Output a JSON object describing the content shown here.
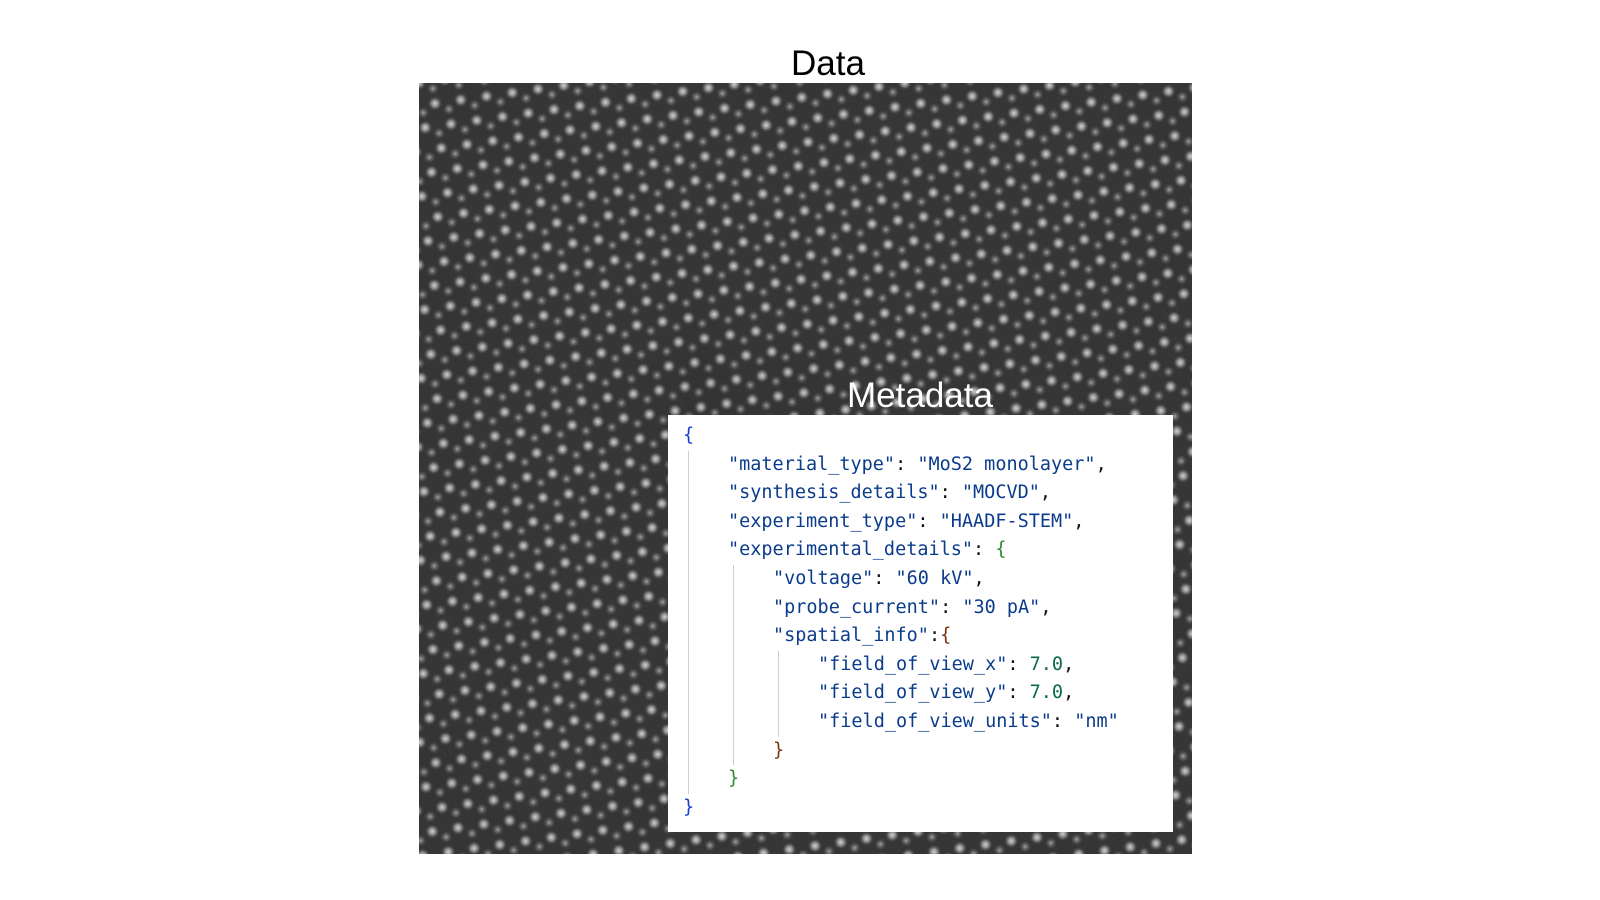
{
  "title": "Data",
  "metadata_title": "Metadata",
  "code": {
    "lines": [
      [
        {
          "text": "{",
          "color": "#1b3fd0"
        }
      ],
      [
        {
          "text": "\"material_type\"",
          "color": "#0b3c8c"
        },
        {
          "text": ": ",
          "color": "#111111"
        },
        {
          "text": "\"MoS2 monolayer\"",
          "color": "#0b3c8c"
        },
        {
          "text": ",",
          "color": "#111111"
        }
      ],
      [
        {
          "text": "\"synthesis_details\"",
          "color": "#0b3c8c"
        },
        {
          "text": ": ",
          "color": "#111111"
        },
        {
          "text": "\"MOCVD\"",
          "color": "#0b3c8c"
        },
        {
          "text": ",",
          "color": "#111111"
        }
      ],
      [
        {
          "text": "\"experiment_type\"",
          "color": "#0b3c8c"
        },
        {
          "text": ": ",
          "color": "#111111"
        },
        {
          "text": "\"HAADF-STEM\"",
          "color": "#0b3c8c"
        },
        {
          "text": ",",
          "color": "#111111"
        }
      ],
      [
        {
          "text": "\"experimental_details\"",
          "color": "#0b3c8c"
        },
        {
          "text": ": ",
          "color": "#111111"
        },
        {
          "text": "{",
          "color": "#2e8b2e"
        }
      ],
      [
        {
          "text": "\"voltage\"",
          "color": "#0b3c8c"
        },
        {
          "text": ": ",
          "color": "#111111"
        },
        {
          "text": "\"60 kV\"",
          "color": "#0b3c8c"
        },
        {
          "text": ",",
          "color": "#111111"
        }
      ],
      [
        {
          "text": "\"probe_current\"",
          "color": "#0b3c8c"
        },
        {
          "text": ": ",
          "color": "#111111"
        },
        {
          "text": "\"30 pA\"",
          "color": "#0b3c8c"
        },
        {
          "text": ",",
          "color": "#111111"
        }
      ],
      [
        {
          "text": "\"spatial_info\"",
          "color": "#0b3c8c"
        },
        {
          "text": ":",
          "color": "#111111"
        },
        {
          "text": "{",
          "color": "#7a3414"
        }
      ],
      [
        {
          "text": "\"field_of_view_x\"",
          "color": "#0b3c8c"
        },
        {
          "text": ": ",
          "color": "#111111"
        },
        {
          "text": "7.0",
          "color": "#0b6b47"
        },
        {
          "text": ",",
          "color": "#111111"
        }
      ],
      [
        {
          "text": "\"field_of_view_y\"",
          "color": "#0b3c8c"
        },
        {
          "text": ": ",
          "color": "#111111"
        },
        {
          "text": "7.0",
          "color": "#0b6b47"
        },
        {
          "text": ",",
          "color": "#111111"
        }
      ],
      [
        {
          "text": "\"field_of_view_units\"",
          "color": "#0b3c8c"
        },
        {
          "text": ": ",
          "color": "#111111"
        },
        {
          "text": "\"nm\"",
          "color": "#0b3c8c"
        }
      ],
      [
        {
          "text": "}",
          "color": "#7a3414"
        }
      ],
      [
        {
          "text": "}",
          "color": "#2e8b2e"
        }
      ],
      [
        {
          "text": "}",
          "color": "#1b3fd0"
        }
      ]
    ]
  }
}
